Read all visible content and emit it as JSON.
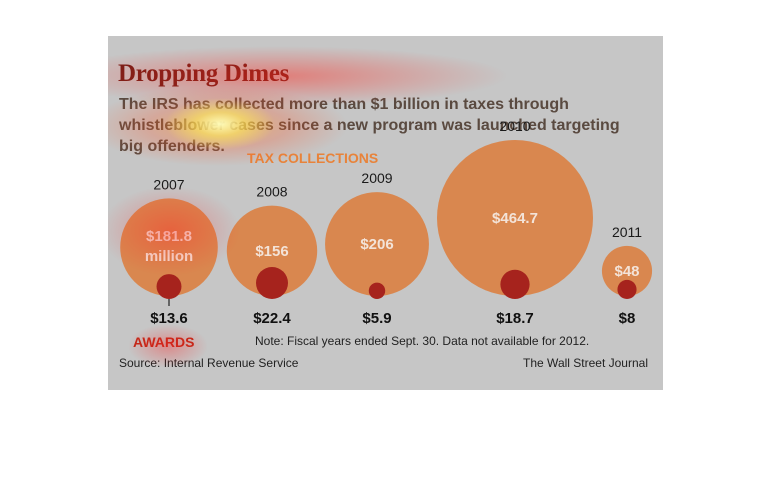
{
  "header": {
    "title": "Dropping Dimes",
    "subtitle": "The IRS has collected more than $1 billion in taxes through whistleblower cases since a new program was launched targeting big offenders."
  },
  "footer": {
    "note": "Note: Fiscal years ended Sept. 30. Data not available for 2012.",
    "source": "Source: Internal Revenue Service",
    "credit": "The Wall Street Journal"
  },
  "chart_data": {
    "type": "bubble",
    "title": "Dropping Dimes",
    "section_label": "TAX COLLECTIONS",
    "award_label": "AWARDS",
    "unit": "million",
    "items": [
      {
        "year": "2007",
        "collections": 181.8,
        "collections_label": "$181.8",
        "collections_unit_label": "million",
        "awards": 13.6,
        "awards_label": "$13.6"
      },
      {
        "year": "2008",
        "collections": 156,
        "collections_label": "$156",
        "awards": 22.4,
        "awards_label": "$22.4"
      },
      {
        "year": "2009",
        "collections": 206,
        "collections_label": "$206",
        "awards": 5.9,
        "awards_label": "$5.9"
      },
      {
        "year": "2010",
        "collections": 464.7,
        "collections_label": "$464.7",
        "awards": 18.7,
        "awards_label": "$18.7"
      },
      {
        "year": "2011",
        "collections": 48,
        "collections_label": "$48",
        "awards": 8,
        "awards_label": "$8"
      }
    ],
    "colors": {
      "collections": "#d9874f",
      "awards": "#a6231d",
      "background": "#c6c6c6"
    }
  }
}
